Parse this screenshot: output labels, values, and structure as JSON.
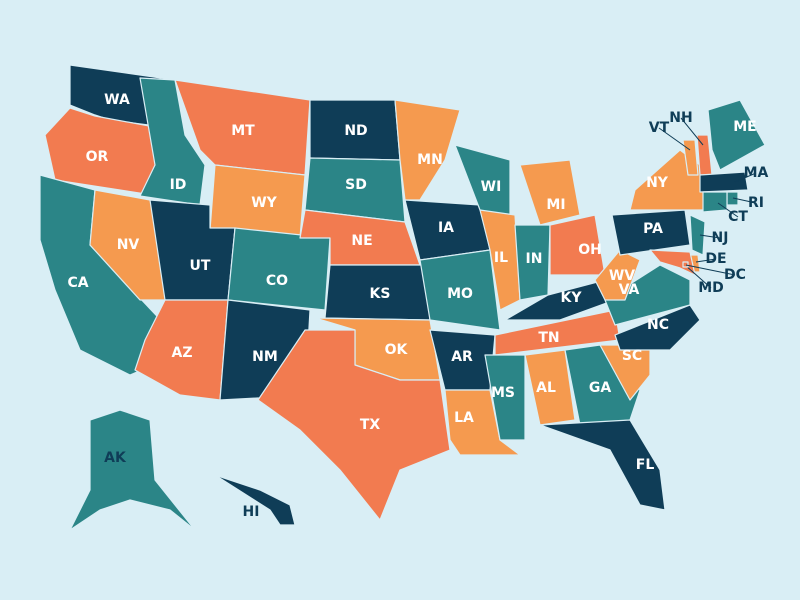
{
  "states": [
    {
      "label": "WA",
      "color": "#0f3d57"
    },
    {
      "label": "OR",
      "color": "#f27b50"
    },
    {
      "label": "CA",
      "color": "#2b8587"
    },
    {
      "label": "NV",
      "color": "#f59a4f"
    },
    {
      "label": "ID",
      "color": "#2b8587"
    },
    {
      "label": "MT",
      "color": "#f27b50"
    },
    {
      "label": "WY",
      "color": "#f59a4f"
    },
    {
      "label": "UT",
      "color": "#0f3d57"
    },
    {
      "label": "CO",
      "color": "#2b8587"
    },
    {
      "label": "AZ",
      "color": "#f27b50"
    },
    {
      "label": "NM",
      "color": "#0f3d57"
    },
    {
      "label": "ND",
      "color": "#0f3d57"
    },
    {
      "label": "SD",
      "color": "#2b8587"
    },
    {
      "label": "NE",
      "color": "#f27b50"
    },
    {
      "label": "KS",
      "color": "#0f3d57"
    },
    {
      "label": "OK",
      "color": "#f59a4f"
    },
    {
      "label": "TX",
      "color": "#f27b50"
    },
    {
      "label": "MN",
      "color": "#f59a4f"
    },
    {
      "label": "IA",
      "color": "#0f3d57"
    },
    {
      "label": "MO",
      "color": "#2b8587"
    },
    {
      "label": "AR",
      "color": "#0f3d57"
    },
    {
      "label": "LA",
      "color": "#f59a4f"
    },
    {
      "label": "WI",
      "color": "#2b8587"
    },
    {
      "label": "IL",
      "color": "#f59a4f"
    },
    {
      "label": "MI",
      "color": "#f59a4f"
    },
    {
      "label": "IN",
      "color": "#2b8587"
    },
    {
      "label": "OH",
      "color": "#f27b50"
    },
    {
      "label": "KY",
      "color": "#0f3d57"
    },
    {
      "label": "TN",
      "color": "#f27b50"
    },
    {
      "label": "MS",
      "color": "#2b8587"
    },
    {
      "label": "AL",
      "color": "#f59a4f"
    },
    {
      "label": "GA",
      "color": "#2b8587"
    },
    {
      "label": "FL",
      "color": "#0f3d57"
    },
    {
      "label": "SC",
      "color": "#f59a4f"
    },
    {
      "label": "NC",
      "color": "#0f3d57"
    },
    {
      "label": "VA",
      "color": "#2b8587"
    },
    {
      "label": "WV",
      "color": "#f59a4f"
    },
    {
      "label": "PA",
      "color": "#0f3d57"
    },
    {
      "label": "NY",
      "color": "#f59a4f"
    },
    {
      "label": "VT",
      "color": "#f59a4f"
    },
    {
      "label": "NH",
      "color": "#f27b50"
    },
    {
      "label": "ME",
      "color": "#2b8587"
    },
    {
      "label": "MA",
      "color": "#0f3d57"
    },
    {
      "label": "RI",
      "color": "#2b8587"
    },
    {
      "label": "CT",
      "color": "#2b8587"
    },
    {
      "label": "NJ",
      "color": "#2b8587"
    },
    {
      "label": "DE",
      "color": "#f59a4f"
    },
    {
      "label": "MD",
      "color": "#f27b50"
    },
    {
      "label": "DC",
      "color": "#f27b50"
    },
    {
      "label": "AK",
      "color": "#2b8587"
    },
    {
      "label": "HI",
      "color": "#0f3d57"
    }
  ]
}
